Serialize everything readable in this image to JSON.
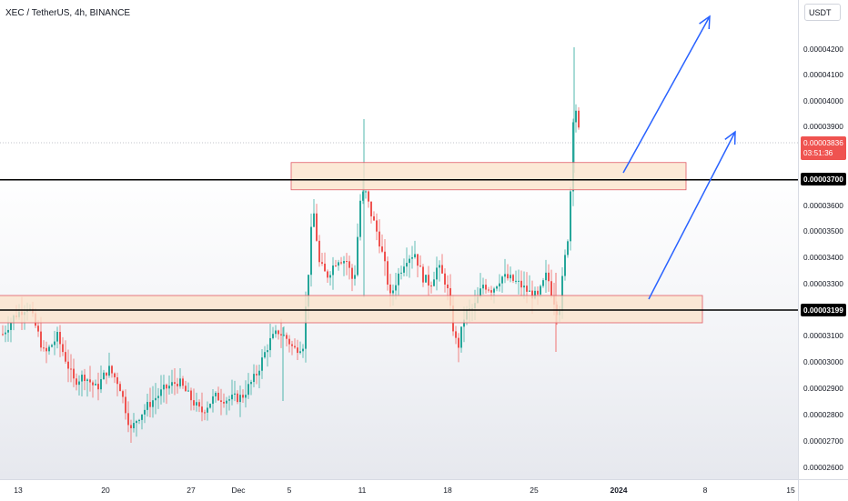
{
  "symbol": {
    "title": "XEC / TetherUS, 4h, BINANCE"
  },
  "price_axis": {
    "currency": "USDT",
    "ticks": [
      "0.00004200",
      "0.00004100",
      "0.00004000",
      "0.00003900",
      "0.00003600",
      "0.00003500",
      "0.00003400",
      "0.00003300",
      "0.00003100",
      "0.00003000",
      "0.00002900",
      "0.00002800",
      "0.00002700",
      "0.00002600"
    ],
    "current_price": "0.00003836",
    "countdown": "03:51:36",
    "resistance_label": "0.00003700",
    "support_label": "0.00003199"
  },
  "time_axis": {
    "labels": [
      "13",
      "20",
      "27",
      "Dec",
      "5",
      "11",
      "18",
      "25",
      "2024",
      "8",
      "15"
    ]
  },
  "drawings": {
    "resistance_level": 3.7e-05,
    "support_level": 3.199e-05,
    "resistance_zone": [
      3.65e-05,
      3.7e-05
    ],
    "support_zone": [
      3.152e-05,
      3.252e-05
    ],
    "horizontal_line_color": "#000000",
    "zone_fill": "#fbe3cc",
    "zone_border": "#e05a66",
    "arrow_color": "#2962ff",
    "candle_up": "#26a69a",
    "candle_down": "#ef5350"
  }
}
